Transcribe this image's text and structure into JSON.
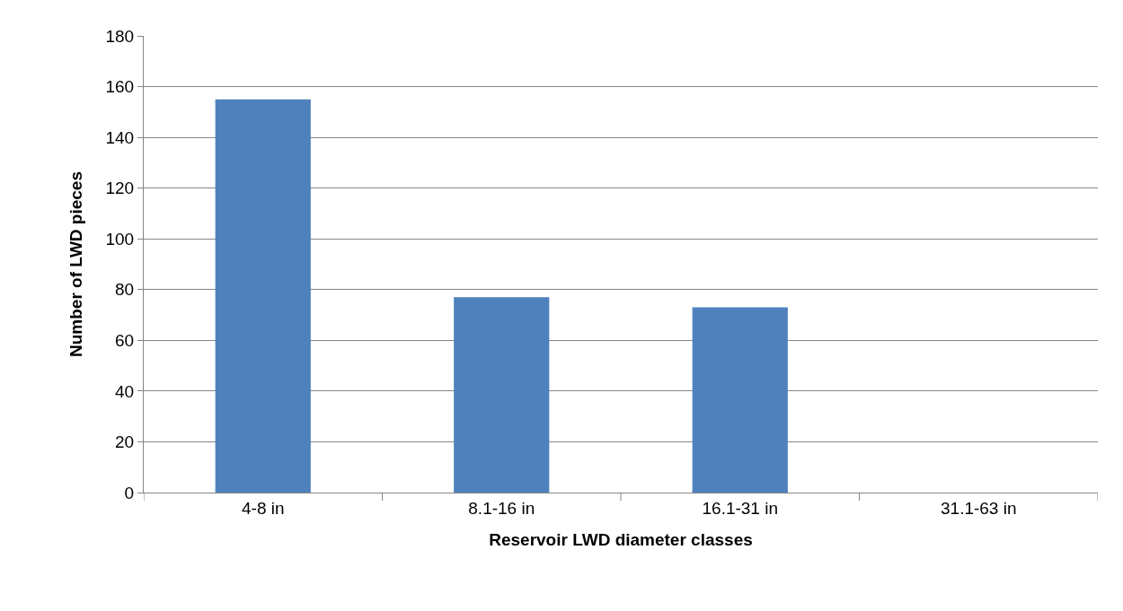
{
  "chart_data": {
    "type": "bar",
    "xlabel": "Reservoir LWD diameter classes",
    "ylabel": "Number of LWD pieces",
    "categories": [
      "4-8 in",
      "8.1-16 in",
      "16.1-31 in",
      "31.1-63 in"
    ],
    "values": [
      155,
      77,
      73,
      0
    ],
    "color": "#4f81bd",
    "ylim": [
      0,
      180
    ],
    "yticks": [
      0,
      20,
      40,
      60,
      80,
      100,
      120,
      140,
      160,
      180
    ],
    "grid": "y"
  }
}
